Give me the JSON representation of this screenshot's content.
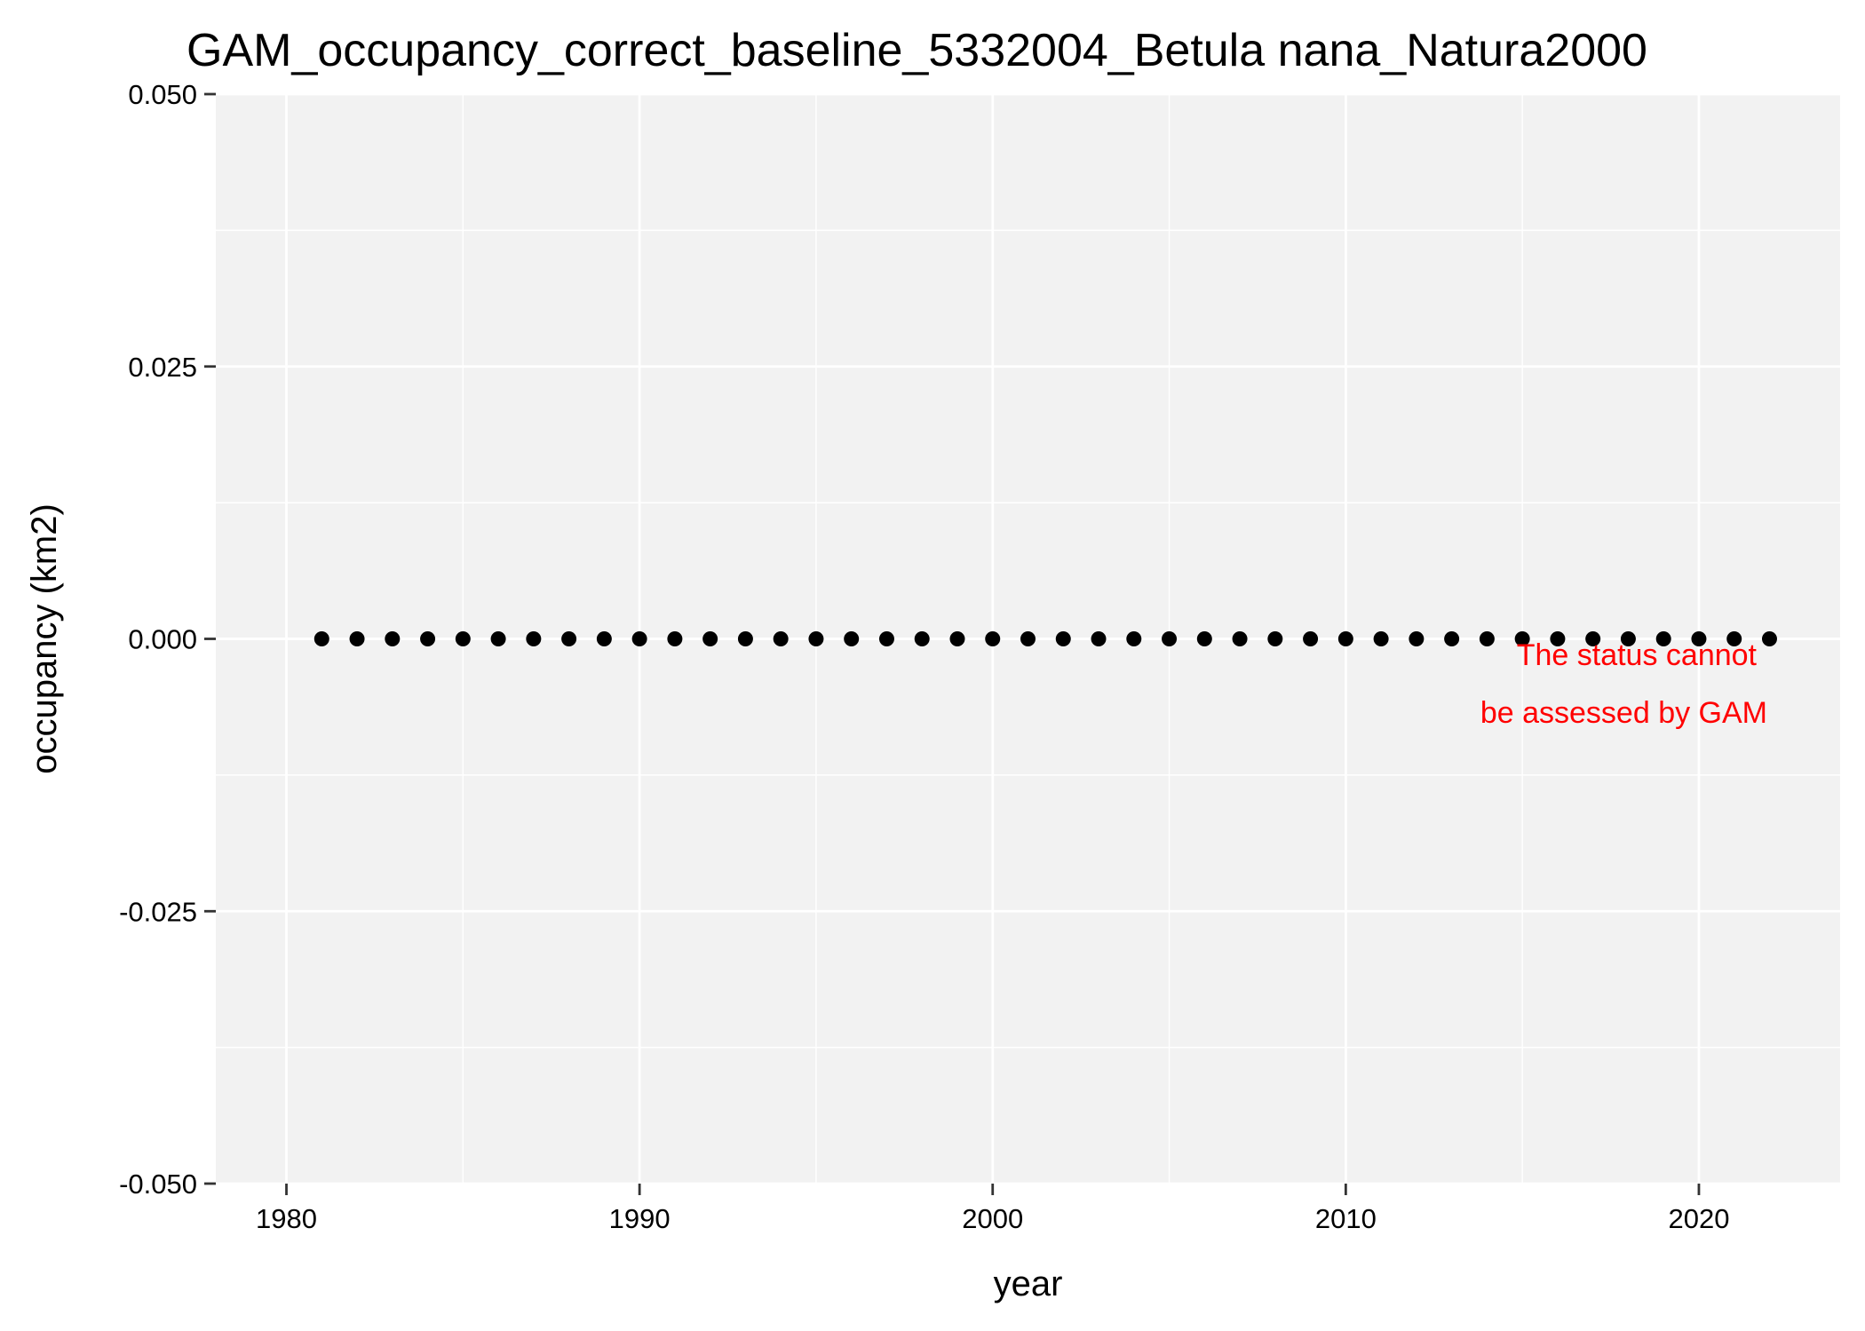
{
  "chart_data": {
    "type": "scatter",
    "title": "GAM_occupancy_correct_baseline_5332004_Betula nana_Natura2000",
    "xlabel": "year",
    "ylabel": "occupancy (km2)",
    "xlim": [
      1978,
      2024
    ],
    "ylim": [
      -0.05,
      0.05
    ],
    "x_ticks": [
      1980,
      1990,
      2000,
      2010,
      2020
    ],
    "x_tick_labels": [
      "1980",
      "1990",
      "2000",
      "2010",
      "2020"
    ],
    "x_minor_ticks": [
      1985,
      1995,
      2005,
      2015
    ],
    "y_ticks": [
      -0.05,
      -0.025,
      0,
      0.025,
      0.05
    ],
    "y_tick_labels": [
      "-0.050",
      "-0.025",
      "0.000",
      "0.025",
      "0.050"
    ],
    "y_minor_ticks": [
      -0.0375,
      -0.0125,
      0.0125,
      0.0375
    ],
    "grid": true,
    "series": [
      {
        "x": [
          1981,
          1982,
          1983,
          1984,
          1985,
          1986,
          1987,
          1988,
          1989,
          1990,
          1991,
          1992,
          1993,
          1994,
          1995,
          1996,
          1997,
          1998,
          1999,
          2000,
          2001,
          2002,
          2003,
          2004,
          2005,
          2006,
          2007,
          2008,
          2009,
          2010,
          2011,
          2012,
          2013,
          2014,
          2015,
          2016,
          2017,
          2018,
          2019,
          2020,
          2021,
          2022
        ],
        "y": [
          0,
          0,
          0,
          0,
          0,
          0,
          0,
          0,
          0,
          0,
          0,
          0,
          0,
          0,
          0,
          0,
          0,
          0,
          0,
          0,
          0,
          0,
          0,
          0,
          0,
          0,
          0,
          0,
          0,
          0,
          0,
          0,
          0,
          0,
          0,
          0,
          0,
          0,
          0,
          0,
          0,
          0
        ],
        "color": "#000000"
      }
    ],
    "annotation": {
      "lines": [
        "The status cannot",
        "be assessed by GAM"
      ],
      "color": "#ff0000"
    },
    "panel_background": "#f2f2f2",
    "grid_color": "#ffffff"
  }
}
